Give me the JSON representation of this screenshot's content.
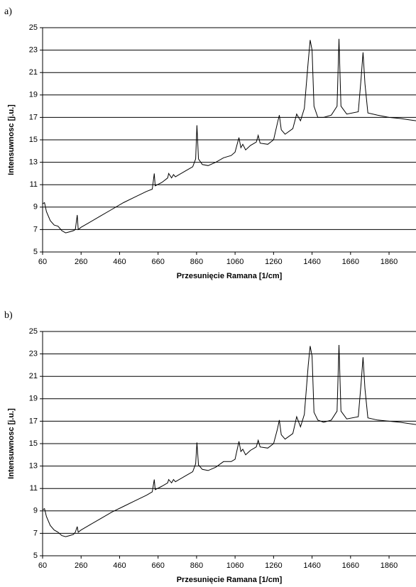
{
  "chart_data": [
    {
      "type": "line",
      "label": "a)",
      "x_label": "Przesunięcie Ramana [1/cm]",
      "y_label": "Intensuwnosc [j.u.]",
      "color": "#000000",
      "grid": true,
      "xlim": [
        60,
        2000
      ],
      "ylim": [
        5,
        25
      ],
      "xticks": [
        60,
        260,
        460,
        660,
        860,
        1060,
        1260,
        1460,
        1660,
        1860
      ],
      "yticks": [
        5,
        7,
        9,
        11,
        13,
        15,
        17,
        19,
        21,
        23,
        25
      ],
      "x": [
        60,
        70,
        80,
        100,
        120,
        140,
        160,
        180,
        200,
        220,
        230,
        240,
        245,
        260,
        300,
        360,
        420,
        480,
        540,
        600,
        630,
        640,
        645,
        680,
        710,
        715,
        730,
        740,
        750,
        800,
        840,
        855,
        862,
        870,
        890,
        920,
        960,
        1000,
        1040,
        1060,
        1080,
        1090,
        1100,
        1115,
        1140,
        1170,
        1180,
        1190,
        1230,
        1260,
        1280,
        1290,
        1300,
        1320,
        1360,
        1380,
        1400,
        1420,
        1440,
        1450,
        1460,
        1470,
        1490,
        1520,
        1560,
        1590,
        1600,
        1610,
        1640,
        1700,
        1715,
        1725,
        1735,
        1750,
        1800,
        1860,
        1920,
        1960,
        2000
      ],
      "values": [
        9.3,
        9.4,
        8.6,
        7.8,
        7.4,
        7.3,
        6.9,
        6.7,
        6.8,
        6.9,
        7.0,
        8.3,
        7.0,
        7.2,
        7.6,
        8.2,
        8.8,
        9.4,
        9.9,
        10.4,
        10.6,
        12.0,
        10.9,
        11.2,
        11.6,
        12.0,
        11.6,
        11.9,
        11.7,
        12.2,
        12.6,
        13.3,
        16.3,
        13.3,
        12.8,
        12.7,
        13.0,
        13.4,
        13.6,
        13.9,
        15.2,
        14.3,
        14.6,
        14.1,
        14.5,
        14.8,
        15.4,
        14.7,
        14.6,
        15.0,
        16.5,
        17.2,
        15.9,
        15.5,
        16.0,
        17.3,
        16.7,
        17.8,
        22.0,
        23.9,
        23.0,
        18.0,
        17.0,
        17.0,
        17.2,
        18.0,
        24.0,
        18.0,
        17.3,
        17.5,
        20.5,
        22.8,
        20.0,
        17.4,
        17.2,
        17.0,
        16.9,
        16.8,
        16.7
      ]
    },
    {
      "type": "line",
      "label": "b)",
      "x_label": "Przesunięcie Ramana [1/cm]",
      "y_label": "Intensuwnosc [j.u.]",
      "color": "#000000",
      "grid": true,
      "xlim": [
        60,
        2000
      ],
      "ylim": [
        5,
        25
      ],
      "xticks": [
        60,
        260,
        460,
        660,
        860,
        1060,
        1260,
        1460,
        1660,
        1860
      ],
      "yticks": [
        5,
        7,
        9,
        11,
        13,
        15,
        17,
        19,
        21,
        23,
        25
      ],
      "x": [
        60,
        70,
        80,
        100,
        120,
        140,
        160,
        180,
        200,
        220,
        230,
        240,
        245,
        260,
        300,
        360,
        420,
        480,
        540,
        600,
        630,
        640,
        645,
        680,
        710,
        715,
        730,
        740,
        750,
        800,
        840,
        855,
        862,
        870,
        890,
        920,
        960,
        1000,
        1040,
        1060,
        1080,
        1090,
        1100,
        1115,
        1140,
        1170,
        1180,
        1190,
        1230,
        1260,
        1280,
        1290,
        1300,
        1320,
        1360,
        1380,
        1400,
        1420,
        1440,
        1450,
        1460,
        1470,
        1490,
        1520,
        1560,
        1590,
        1600,
        1610,
        1640,
        1700,
        1715,
        1725,
        1735,
        1750,
        1800,
        1860,
        1920,
        1960,
        2000
      ],
      "values": [
        9.1,
        9.2,
        8.5,
        7.7,
        7.3,
        7.1,
        6.8,
        6.7,
        6.8,
        6.9,
        7.1,
        7.6,
        7.1,
        7.3,
        7.7,
        8.3,
        8.9,
        9.4,
        9.9,
        10.4,
        10.7,
        11.8,
        10.9,
        11.2,
        11.5,
        11.8,
        11.5,
        11.8,
        11.6,
        12.1,
        12.5,
        13.2,
        15.1,
        13.1,
        12.7,
        12.6,
        12.9,
        13.4,
        13.4,
        13.6,
        15.2,
        14.3,
        14.5,
        14.0,
        14.4,
        14.7,
        15.3,
        14.7,
        14.6,
        15.0,
        16.3,
        17.1,
        15.8,
        15.4,
        15.9,
        17.4,
        16.5,
        17.6,
        22.0,
        23.7,
        22.8,
        17.8,
        17.1,
        16.9,
        17.1,
        17.9,
        23.8,
        17.9,
        17.2,
        17.4,
        20.4,
        22.7,
        19.9,
        17.3,
        17.1,
        17.0,
        16.9,
        16.8,
        16.7
      ]
    }
  ]
}
